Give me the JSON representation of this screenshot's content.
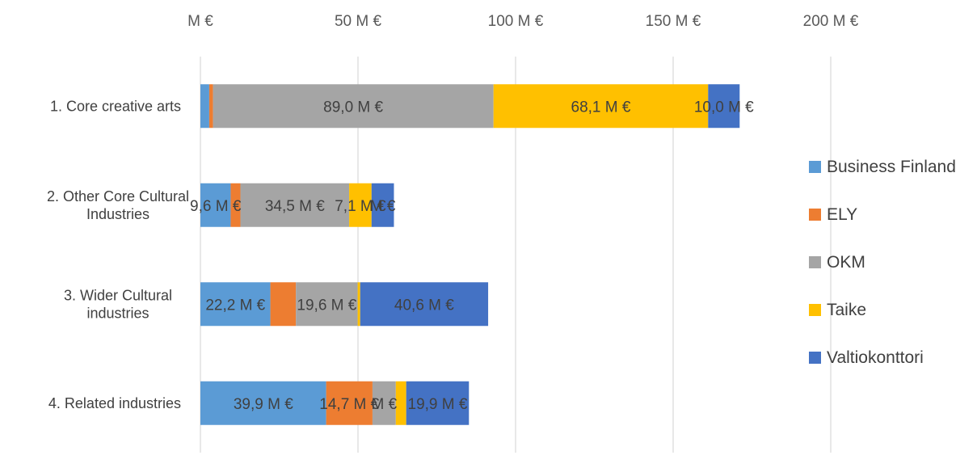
{
  "chart_data": {
    "type": "bar",
    "orientation": "horizontal",
    "stacked": true,
    "categories": [
      [
        "1. Core creative arts"
      ],
      [
        "2. Other Core Cultural",
        "Industries"
      ],
      [
        "3. Wider Cultural",
        "industries"
      ],
      [
        "4. Related industries"
      ]
    ],
    "series": [
      {
        "name": "Business Finland",
        "color": "#5B9BD5",
        "values": [
          2.8,
          9.6,
          22.2,
          39.9
        ]
      },
      {
        "name": "ELY",
        "color": "#ED7D31",
        "values": [
          1.2,
          3.1,
          8.1,
          14.7
        ]
      },
      {
        "name": "OKM",
        "color": "#A5A5A5",
        "values": [
          89.0,
          34.5,
          19.6,
          7.4
        ]
      },
      {
        "name": "Taike",
        "color": "#FFC000",
        "values": [
          68.1,
          7.1,
          0.8,
          3.3
        ]
      },
      {
        "name": "Valtiokonttori",
        "color": "#4472C4",
        "values": [
          10.0,
          7.1,
          40.6,
          19.9
        ]
      }
    ],
    "data_labels": [
      [
        "",
        "",
        "89,0  M €",
        "68,1  M €",
        "10,0  M €"
      ],
      [
        "9,6  M €",
        "",
        "34,5  M €",
        "7,1  M €",
        "M €"
      ],
      [
        "22,2  M €",
        "",
        "19,6  M €",
        "",
        "40,6  M €"
      ],
      [
        "39,9  M €",
        "14,7  M €",
        "M €",
        "",
        "19,9  M €"
      ]
    ],
    "xlim": [
      0,
      200
    ],
    "x_ticks": [
      0,
      50,
      100,
      150,
      200
    ],
    "x_tick_labels": [
      "M €",
      "50  M €",
      "100  M €",
      "150  M €",
      "200  M €"
    ],
    "x_axis_position": "top",
    "grid": true,
    "legend_position": "right"
  }
}
